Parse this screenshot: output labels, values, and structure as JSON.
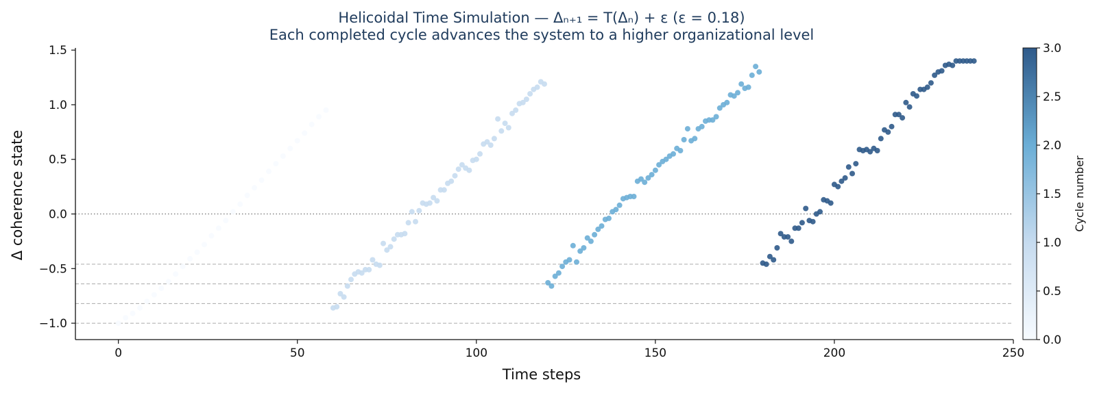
{
  "chart_data": {
    "type": "scatter",
    "title": "Helicoidal Time Simulation — Δₙ₊₁ = T(Δₙ) + ε   (ε = 0.18)",
    "subtitle": "Each completed cycle advances the system to a higher organizational level",
    "xlabel": "Time steps",
    "ylabel": "Δ coherence state",
    "xlim": [
      -12,
      250
    ],
    "ylim": [
      -1.15,
      1.52
    ],
    "xticks": [
      0,
      50,
      100,
      150,
      200,
      250
    ],
    "yticks": [
      -1.0,
      -0.5,
      0.0,
      0.5,
      1.0,
      1.5
    ],
    "grid": false,
    "reference_lines": [
      {
        "y": 0.0,
        "style": "dotted"
      },
      {
        "y": -0.46,
        "style": "dashed"
      },
      {
        "y": -0.64,
        "style": "dashed"
      },
      {
        "y": -0.82,
        "style": "dashed"
      },
      {
        "y": -1.0,
        "style": "dashed"
      }
    ],
    "colorbar": {
      "label": "Cycle number",
      "range": [
        0,
        3
      ],
      "ticks": [
        0.0,
        0.5,
        1.0,
        1.5,
        2.0,
        2.5,
        3.0
      ],
      "colors": [
        "#f7fbff",
        "#c6dbef",
        "#6baed6",
        "#2f5a8a"
      ]
    },
    "series": [
      {
        "cycle": 0,
        "x": [
          0,
          2,
          4,
          6,
          8,
          10,
          12,
          14,
          16,
          18,
          20,
          22,
          24,
          26,
          28,
          30,
          32,
          34,
          36,
          38,
          40,
          42,
          44,
          46,
          48,
          50,
          52,
          54,
          56,
          58
        ],
        "y": [
          -1.0,
          -0.95,
          -0.91,
          -0.86,
          -0.8,
          -0.74,
          -0.68,
          -0.62,
          -0.55,
          -0.48,
          -0.41,
          -0.35,
          -0.28,
          -0.2,
          -0.13,
          -0.06,
          0.02,
          0.09,
          0.17,
          0.24,
          0.31,
          0.39,
          0.46,
          0.53,
          0.6,
          0.67,
          0.74,
          0.82,
          0.89,
          0.95
        ]
      },
      {
        "cycle": 1,
        "x": [
          60,
          61,
          62,
          63,
          64,
          65,
          66,
          67,
          68,
          69,
          70,
          71,
          72,
          73,
          74,
          75,
          76,
          77,
          78,
          79,
          80,
          81,
          82,
          83,
          84,
          85,
          86,
          87,
          88,
          89,
          90,
          91,
          92,
          93,
          94,
          95,
          96,
          97,
          98,
          99,
          100,
          101,
          102,
          103,
          104,
          105,
          106,
          107,
          108,
          109,
          110,
          111,
          112,
          113,
          114,
          115,
          116,
          117,
          118,
          119
        ],
        "y": [
          -0.86,
          -0.85,
          -0.73,
          -0.76,
          -0.66,
          -0.6,
          -0.55,
          -0.53,
          -0.54,
          -0.51,
          -0.51,
          -0.42,
          -0.46,
          -0.47,
          -0.27,
          -0.33,
          -0.3,
          -0.23,
          -0.19,
          -0.19,
          -0.18,
          -0.08,
          0.02,
          -0.07,
          0.03,
          0.1,
          0.09,
          0.1,
          0.15,
          0.12,
          0.22,
          0.22,
          0.28,
          0.3,
          0.35,
          0.41,
          0.45,
          0.42,
          0.4,
          0.49,
          0.5,
          0.55,
          0.64,
          0.66,
          0.63,
          0.69,
          0.87,
          0.76,
          0.83,
          0.79,
          0.92,
          0.95,
          1.01,
          1.02,
          1.05,
          1.1,
          1.14,
          1.16,
          1.21,
          1.19
        ]
      },
      {
        "cycle": 2,
        "x": [
          120,
          121,
          122,
          123,
          124,
          125,
          126,
          127,
          128,
          129,
          130,
          131,
          132,
          133,
          134,
          135,
          136,
          137,
          138,
          139,
          140,
          141,
          142,
          143,
          144,
          145,
          146,
          147,
          148,
          149,
          150,
          151,
          152,
          153,
          154,
          155,
          156,
          157,
          158,
          159,
          160,
          161,
          162,
          163,
          164,
          165,
          166,
          167,
          168,
          169,
          170,
          171,
          172,
          173,
          174,
          175,
          176,
          177,
          178,
          179
        ],
        "y": [
          -0.63,
          -0.66,
          -0.57,
          -0.54,
          -0.48,
          -0.44,
          -0.42,
          -0.29,
          -0.44,
          -0.34,
          -0.31,
          -0.22,
          -0.25,
          -0.19,
          -0.14,
          -0.11,
          -0.05,
          -0.04,
          0.02,
          0.04,
          0.08,
          0.14,
          0.15,
          0.16,
          0.16,
          0.3,
          0.32,
          0.29,
          0.33,
          0.36,
          0.4,
          0.45,
          0.48,
          0.5,
          0.53,
          0.55,
          0.6,
          0.58,
          0.68,
          0.78,
          0.67,
          0.69,
          0.78,
          0.8,
          0.85,
          0.86,
          0.86,
          0.89,
          0.97,
          1.0,
          1.02,
          1.09,
          1.08,
          1.11,
          1.19,
          1.15,
          1.16,
          1.27,
          1.35,
          1.3
        ]
      },
      {
        "cycle": 3,
        "x": [
          180,
          181,
          182,
          183,
          184,
          185,
          186,
          187,
          188,
          189,
          190,
          191,
          192,
          193,
          194,
          195,
          196,
          197,
          198,
          199,
          200,
          201,
          202,
          203,
          204,
          205,
          206,
          207,
          208,
          209,
          210,
          211,
          212,
          213,
          214,
          215,
          216,
          217,
          218,
          219,
          220,
          221,
          222,
          223,
          224,
          225,
          226,
          227,
          228,
          229,
          230,
          231,
          232,
          233,
          234,
          235,
          236,
          237,
          238,
          239
        ],
        "y": [
          -0.45,
          -0.46,
          -0.39,
          -0.42,
          -0.31,
          -0.18,
          -0.21,
          -0.21,
          -0.25,
          -0.13,
          -0.13,
          -0.08,
          0.05,
          -0.06,
          -0.07,
          0.0,
          0.02,
          0.13,
          0.12,
          0.1,
          0.27,
          0.25,
          0.3,
          0.33,
          0.43,
          0.37,
          0.46,
          0.59,
          0.58,
          0.59,
          0.57,
          0.6,
          0.58,
          0.69,
          0.77,
          0.75,
          0.8,
          0.91,
          0.91,
          0.88,
          1.02,
          0.98,
          1.1,
          1.08,
          1.14,
          1.14,
          1.16,
          1.2,
          1.27,
          1.3,
          1.31,
          1.36,
          1.37,
          1.36,
          1.4,
          1.4,
          1.4,
          1.4,
          1.4,
          1.4
        ]
      }
    ]
  }
}
